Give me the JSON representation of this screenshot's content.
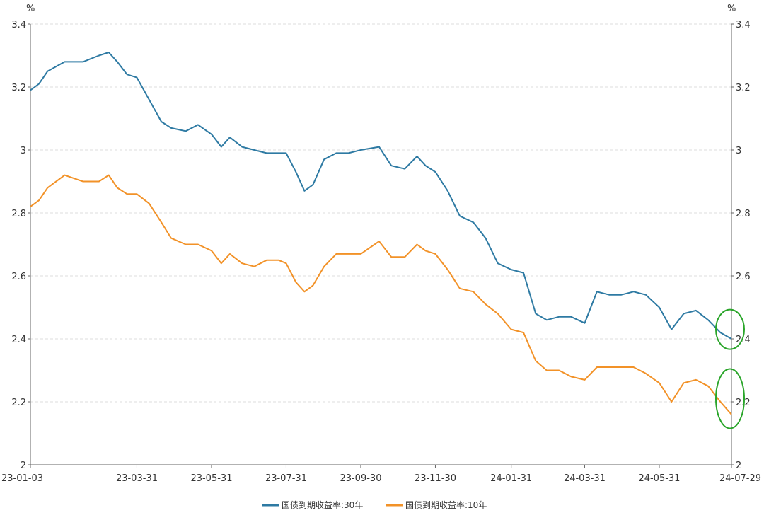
{
  "chart_data": {
    "type": "line",
    "y_unit_left": "%",
    "y_unit_right": "%",
    "ylim": [
      2,
      3.4
    ],
    "y_ticks": [
      "2",
      "2.2",
      "2.4",
      "2.6",
      "2.8",
      "3",
      "3.2",
      "3.4"
    ],
    "x_ticks": [
      "23-01-03",
      "23-03-31",
      "23-05-31",
      "23-07-31",
      "23-09-30",
      "23-11-30",
      "24-01-31",
      "24-03-31",
      "24-05-31",
      "24-07-29"
    ],
    "grid": "horizontal dashed",
    "legend_position": "bottom",
    "series": [
      {
        "name": "国债到期收益率:30年",
        "color": "#2e7aa3",
        "points": [
          [
            "23-01-03",
            3.19
          ],
          [
            "23-01-10",
            3.21
          ],
          [
            "23-01-17",
            3.25
          ],
          [
            "23-01-31",
            3.28
          ],
          [
            "23-02-15",
            3.28
          ],
          [
            "23-02-28",
            3.3
          ],
          [
            "23-03-08",
            3.31
          ],
          [
            "23-03-15",
            3.28
          ],
          [
            "23-03-23",
            3.24
          ],
          [
            "23-03-31",
            3.23
          ],
          [
            "23-04-10",
            3.16
          ],
          [
            "23-04-20",
            3.09
          ],
          [
            "23-04-28",
            3.07
          ],
          [
            "23-05-10",
            3.06
          ],
          [
            "23-05-20",
            3.08
          ],
          [
            "23-05-31",
            3.05
          ],
          [
            "23-06-08",
            3.01
          ],
          [
            "23-06-15",
            3.04
          ],
          [
            "23-06-25",
            3.01
          ],
          [
            "23-07-05",
            3.0
          ],
          [
            "23-07-15",
            2.99
          ],
          [
            "23-07-25",
            2.99
          ],
          [
            "23-07-31",
            2.99
          ],
          [
            "23-08-08",
            2.93
          ],
          [
            "23-08-15",
            2.87
          ],
          [
            "23-08-22",
            2.89
          ],
          [
            "23-08-31",
            2.97
          ],
          [
            "23-09-10",
            2.99
          ],
          [
            "23-09-20",
            2.99
          ],
          [
            "23-09-30",
            3.0
          ],
          [
            "23-10-15",
            3.01
          ],
          [
            "23-10-25",
            2.95
          ],
          [
            "23-11-05",
            2.94
          ],
          [
            "23-11-15",
            2.98
          ],
          [
            "23-11-22",
            2.95
          ],
          [
            "23-11-30",
            2.93
          ],
          [
            "23-12-10",
            2.87
          ],
          [
            "23-12-20",
            2.79
          ],
          [
            "23-12-31",
            2.77
          ],
          [
            "24-01-10",
            2.72
          ],
          [
            "24-01-20",
            2.64
          ],
          [
            "24-01-31",
            2.62
          ],
          [
            "24-02-10",
            2.61
          ],
          [
            "24-02-20",
            2.48
          ],
          [
            "24-02-29",
            2.46
          ],
          [
            "24-03-10",
            2.47
          ],
          [
            "24-03-20",
            2.47
          ],
          [
            "24-03-31",
            2.45
          ],
          [
            "24-04-10",
            2.55
          ],
          [
            "24-04-20",
            2.54
          ],
          [
            "24-04-30",
            2.54
          ],
          [
            "24-05-10",
            2.55
          ],
          [
            "24-05-20",
            2.54
          ],
          [
            "24-05-31",
            2.5
          ],
          [
            "24-06-10",
            2.43
          ],
          [
            "24-06-20",
            2.48
          ],
          [
            "24-06-30",
            2.49
          ],
          [
            "24-07-10",
            2.46
          ],
          [
            "24-07-20",
            2.42
          ],
          [
            "24-07-29",
            2.4
          ]
        ]
      },
      {
        "name": "国债到期收益率:10年",
        "color": "#f29228",
        "points": [
          [
            "23-01-03",
            2.82
          ],
          [
            "23-01-10",
            2.84
          ],
          [
            "23-01-17",
            2.88
          ],
          [
            "23-01-31",
            2.92
          ],
          [
            "23-02-15",
            2.9
          ],
          [
            "23-02-28",
            2.9
          ],
          [
            "23-03-08",
            2.92
          ],
          [
            "23-03-15",
            2.88
          ],
          [
            "23-03-23",
            2.86
          ],
          [
            "23-03-31",
            2.86
          ],
          [
            "23-04-10",
            2.83
          ],
          [
            "23-04-20",
            2.77
          ],
          [
            "23-04-28",
            2.72
          ],
          [
            "23-05-10",
            2.7
          ],
          [
            "23-05-20",
            2.7
          ],
          [
            "23-05-31",
            2.68
          ],
          [
            "23-06-08",
            2.64
          ],
          [
            "23-06-15",
            2.67
          ],
          [
            "23-06-25",
            2.64
          ],
          [
            "23-07-05",
            2.63
          ],
          [
            "23-07-15",
            2.65
          ],
          [
            "23-07-25",
            2.65
          ],
          [
            "23-07-31",
            2.64
          ],
          [
            "23-08-08",
            2.58
          ],
          [
            "23-08-15",
            2.55
          ],
          [
            "23-08-22",
            2.57
          ],
          [
            "23-08-31",
            2.63
          ],
          [
            "23-09-10",
            2.67
          ],
          [
            "23-09-20",
            2.67
          ],
          [
            "23-09-30",
            2.67
          ],
          [
            "23-10-15",
            2.71
          ],
          [
            "23-10-25",
            2.66
          ],
          [
            "23-11-05",
            2.66
          ],
          [
            "23-11-15",
            2.7
          ],
          [
            "23-11-22",
            2.68
          ],
          [
            "23-11-30",
            2.67
          ],
          [
            "23-12-10",
            2.62
          ],
          [
            "23-12-20",
            2.56
          ],
          [
            "23-12-31",
            2.55
          ],
          [
            "24-01-10",
            2.51
          ],
          [
            "24-01-20",
            2.48
          ],
          [
            "24-01-31",
            2.43
          ],
          [
            "24-02-10",
            2.42
          ],
          [
            "24-02-20",
            2.33
          ],
          [
            "24-02-29",
            2.3
          ],
          [
            "24-03-10",
            2.3
          ],
          [
            "24-03-20",
            2.28
          ],
          [
            "24-03-31",
            2.27
          ],
          [
            "24-04-10",
            2.31
          ],
          [
            "24-04-20",
            2.31
          ],
          [
            "24-04-30",
            2.31
          ],
          [
            "24-05-10",
            2.31
          ],
          [
            "24-05-20",
            2.29
          ],
          [
            "24-05-31",
            2.26
          ],
          [
            "24-06-10",
            2.2
          ],
          [
            "24-06-20",
            2.26
          ],
          [
            "24-06-30",
            2.27
          ],
          [
            "24-07-10",
            2.25
          ],
          [
            "24-07-20",
            2.2
          ],
          [
            "24-07-29",
            2.16
          ]
        ]
      }
    ],
    "annotations": [
      {
        "shape": "ellipse",
        "color": "#2aa52a",
        "highlights": "国债到期收益率:30年",
        "at_date": "24-07-29",
        "y_center": 2.43
      },
      {
        "shape": "ellipse",
        "color": "#2aa52a",
        "highlights": "国债到期收益率:10年",
        "at_date": "24-07-29",
        "y_center": 2.21
      }
    ]
  }
}
